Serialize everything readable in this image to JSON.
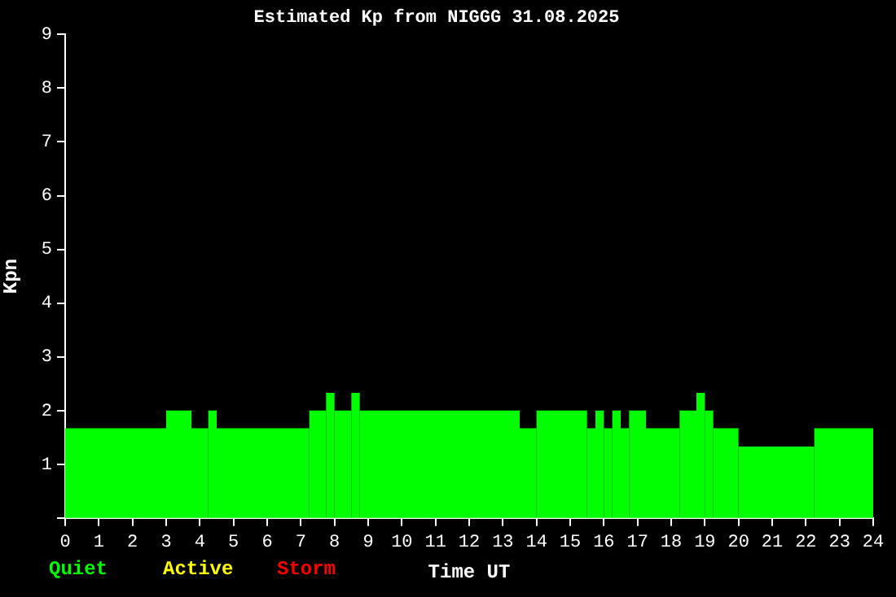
{
  "chart_data": {
    "type": "histogram",
    "title": "Estimated Kp from NIGGG 31.08.2025",
    "xlabel": "Time UT",
    "ylabel": "Kpn",
    "bins": [
      0,
      3,
      3.75,
      4.25,
      4.5,
      7.25,
      7.75,
      8,
      8.5,
      8.75,
      13.5,
      14,
      15.5,
      15.75,
      16,
      16.25,
      16.5,
      16.75,
      17.25,
      18.25,
      18.75,
      19,
      19.25,
      20,
      22.25,
      24
    ],
    "values": [
      1.67,
      2,
      1.67,
      2,
      1.67,
      2,
      2.33,
      2,
      2.33,
      2,
      1.67,
      2,
      1.67,
      2,
      1.67,
      2,
      1.67,
      2,
      1.67,
      2,
      2.33,
      2,
      1.67,
      1.33,
      1.67
    ],
    "color": "#00ff00",
    "xlim": [
      0,
      24
    ],
    "xticks": [
      0,
      1,
      2,
      3,
      4,
      5,
      6,
      7,
      8,
      9,
      10,
      11,
      12,
      13,
      14,
      15,
      16,
      17,
      18,
      19,
      20,
      21,
      22,
      23,
      24
    ],
    "ylim": [
      0,
      9
    ],
    "yticks": [
      {
        "value": 0,
        "label": null
      },
      1,
      2,
      3,
      4,
      5,
      6,
      7,
      8,
      9
    ],
    "grid": false,
    "legend": false,
    "annotations": [
      "Quiet",
      "Active",
      "Storm"
    ]
  }
}
